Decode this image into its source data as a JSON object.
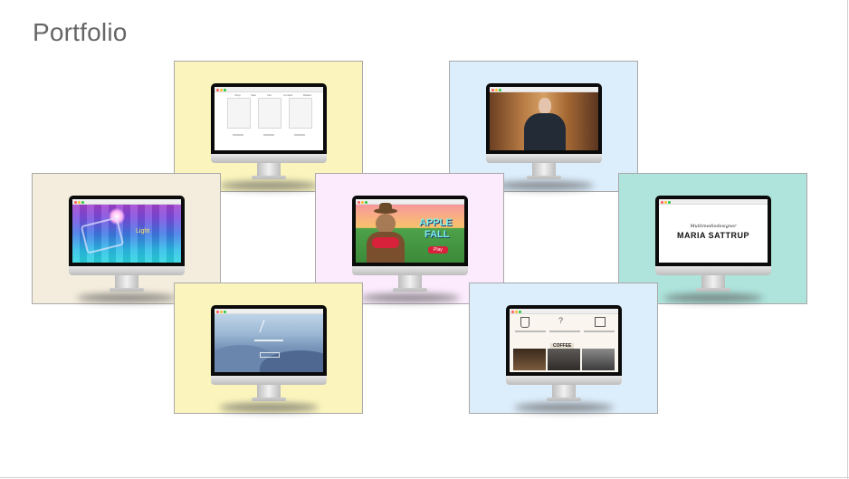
{
  "page": {
    "title": "Portfolio"
  },
  "tiles": [
    {
      "id": "clothing-shop",
      "bg": "#fbf5bd",
      "screen": "clothing-shop",
      "nav": [
        "Shop",
        "Sale",
        "Info",
        "Contact",
        "Basket"
      ]
    },
    {
      "id": "video-portrait",
      "bg": "#dcedfb",
      "screen": "video-portrait"
    },
    {
      "id": "pixel-light",
      "bg": "#f4eddd",
      "screen": "pixel-light",
      "overlay": "Light"
    },
    {
      "id": "apple-fall-game",
      "bg": "#fcebfd",
      "screen": "apple-fall-game",
      "title_line1": "APPLE",
      "title_line2": "FALL",
      "button": "Play"
    },
    {
      "id": "maria-sattrup",
      "bg": "#aee4dc",
      "screen": "maria-sattrup",
      "script_line": "Multimediedesigner",
      "name": "MARIA SATTRUP"
    },
    {
      "id": "mountain-site",
      "bg": "#fbf5bd",
      "screen": "mountain-site"
    },
    {
      "id": "coffee-site",
      "bg": "#dcedfb",
      "screen": "coffee-site",
      "banner": "COFFEE"
    }
  ],
  "colors": {
    "title": "#666666",
    "tile_border": "#a9a9a9",
    "monitor_bezel": "#0b0b0b"
  }
}
